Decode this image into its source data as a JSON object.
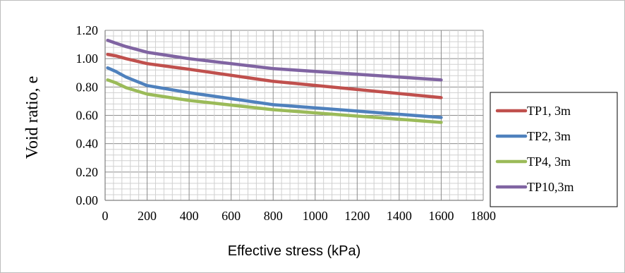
{
  "chart_data": {
    "type": "line",
    "xlabel": "Effective stress (kPa)",
    "ylabel": "Void ratio, e",
    "xlim": [
      0,
      1800
    ],
    "ylim": [
      0,
      1.2
    ],
    "x_ticks": [
      "0",
      "200",
      "400",
      "600",
      "800",
      "1000",
      "1200",
      "1400",
      "1600",
      "1800"
    ],
    "y_ticks": [
      "0.00",
      "0.20",
      "0.40",
      "0.60",
      "0.80",
      "1.00",
      "1.20"
    ],
    "grid": true,
    "legend_position": "right",
    "series": [
      {
        "name": "TP1, 3m",
        "color": "#c0504d",
        "points": [
          [
            12,
            1.03
          ],
          [
            50,
            1.02
          ],
          [
            100,
            1.0
          ],
          [
            200,
            0.965
          ],
          [
            400,
            0.925
          ],
          [
            800,
            0.84
          ],
          [
            1600,
            0.725
          ]
        ]
      },
      {
        "name": "TP2, 3m",
        "color": "#4f81bd",
        "points": [
          [
            12,
            0.935
          ],
          [
            50,
            0.91
          ],
          [
            100,
            0.87
          ],
          [
            200,
            0.81
          ],
          [
            400,
            0.76
          ],
          [
            800,
            0.675
          ],
          [
            1600,
            0.585
          ]
        ]
      },
      {
        "name": "TP4, 3m",
        "color": "#9bbb59",
        "points": [
          [
            12,
            0.85
          ],
          [
            50,
            0.83
          ],
          [
            100,
            0.795
          ],
          [
            200,
            0.75
          ],
          [
            400,
            0.705
          ],
          [
            800,
            0.64
          ],
          [
            1600,
            0.55
          ]
        ]
      },
      {
        "name": "TP10,3m",
        "color": "#8064a2",
        "points": [
          [
            12,
            1.13
          ],
          [
            50,
            1.11
          ],
          [
            100,
            1.085
          ],
          [
            200,
            1.045
          ],
          [
            400,
            1.0
          ],
          [
            800,
            0.93
          ],
          [
            1600,
            0.85
          ]
        ]
      }
    ]
  }
}
